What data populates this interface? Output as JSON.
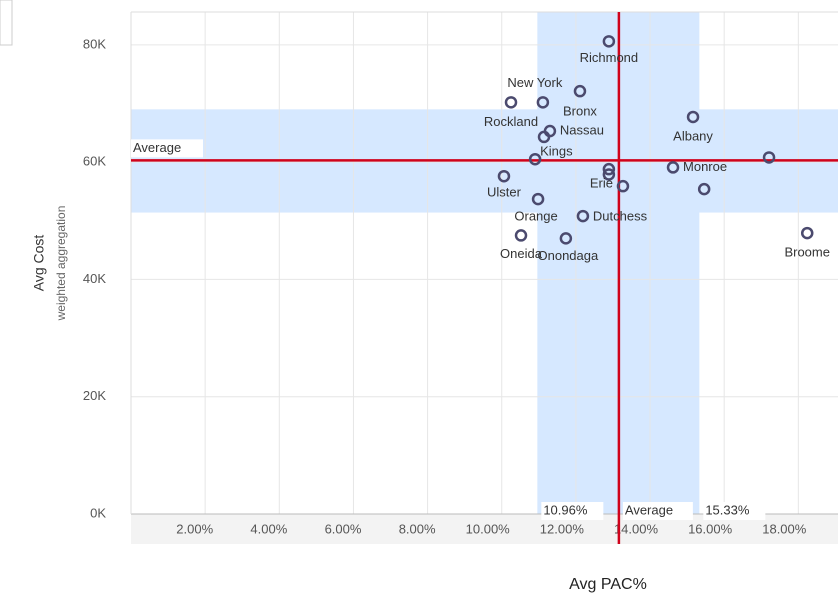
{
  "chart_data": {
    "type": "scatter",
    "x_label": "Avg PAC%",
    "y_label": "Avg Cost",
    "y_sublabel": "weighted aggregation",
    "xlim": [
      0,
      19.07
    ],
    "ylim": [
      0,
      85600
    ],
    "xticks": [
      {
        "value": 2,
        "label": "2.00%"
      },
      {
        "value": 4,
        "label": "4.00%"
      },
      {
        "value": 6,
        "label": "6.00%"
      },
      {
        "value": 8,
        "label": "8.00%"
      },
      {
        "value": 10,
        "label": "10.00%"
      },
      {
        "value": 12,
        "label": "12.00%"
      },
      {
        "value": 14,
        "label": "14.00%"
      },
      {
        "value": 16,
        "label": "16.00%"
      },
      {
        "value": 18,
        "label": "18.00%"
      }
    ],
    "yticks": [
      {
        "value": 0,
        "label": "0K"
      },
      {
        "value": 20000,
        "label": "20K"
      },
      {
        "value": 40000,
        "label": "40K"
      },
      {
        "value": 60000,
        "label": "60K"
      },
      {
        "value": 80000,
        "label": "80K"
      }
    ],
    "grid": true,
    "color": "#4b4a6e",
    "x": [
      12.89,
      12.11,
      10.25,
      11.11,
      11.3,
      11.14,
      15.16,
      10.9,
      17.21,
      14.62,
      12.89,
      12.89,
      10.06,
      13.27,
      15.46,
      10.98,
      12.19,
      10.52,
      11.73,
      18.24
    ],
    "values": [
      80600,
      72100,
      70200,
      70200,
      65300,
      64300,
      67700,
      60500,
      60800,
      59100,
      58800,
      57900,
      57600,
      55900,
      55400,
      53700,
      50800,
      47500,
      47000,
      47900
    ],
    "labels": [
      "Richmond",
      "Bronx",
      "Rockland",
      "New York",
      "Nassau",
      null,
      "Albany",
      "Kings",
      null,
      "Monroe",
      null,
      null,
      "Ulster",
      "Erie",
      null,
      "Orange",
      "Dutchess",
      "Oneida",
      "Onondaga",
      "Broome"
    ],
    "x_reference": {
      "label": "Average",
      "value": 13.16,
      "band": [
        {
          "value": 10.96,
          "label": "10.96%"
        },
        {
          "value": 15.33,
          "label": "15.33%"
        }
      ],
      "color": "#d0021b"
    },
    "y_reference": {
      "label": "Average",
      "value": 60300,
      "band": [
        51400,
        69000
      ],
      "color": "#d0021b"
    },
    "band_color": "#d6e8ff"
  }
}
